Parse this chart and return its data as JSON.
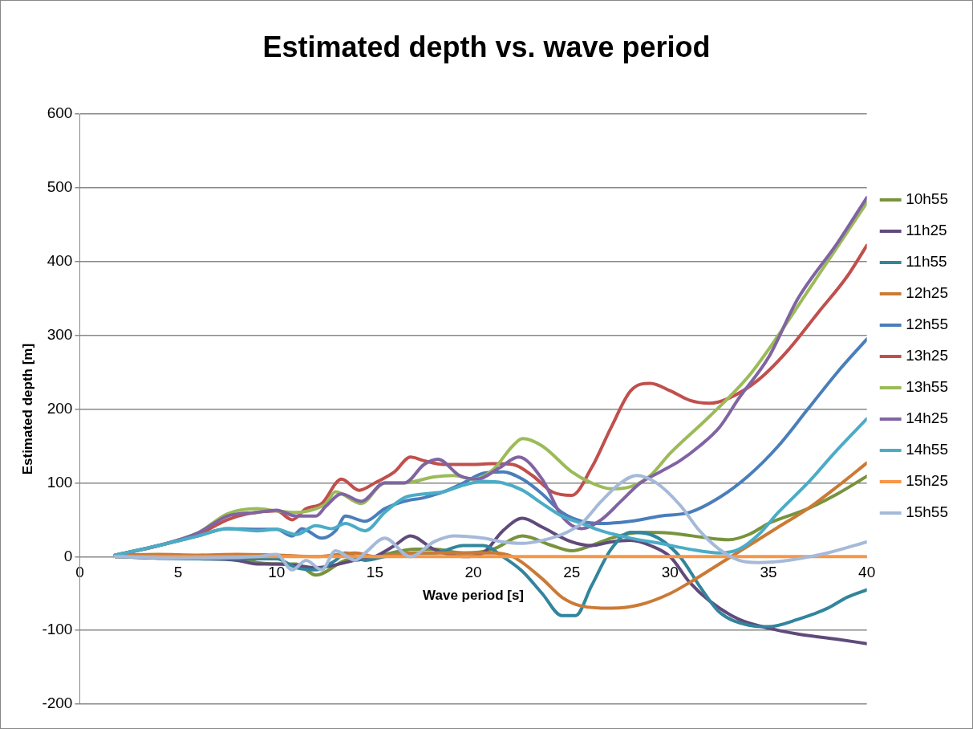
{
  "chart_data": {
    "type": "line",
    "title": "Estimated depth vs. wave period",
    "xlabel": "Wave period [s]",
    "ylabel": "Estimated depth [m]",
    "xlim": [
      0,
      40
    ],
    "xticks": [
      0,
      5,
      10,
      15,
      20,
      25,
      30,
      35,
      40
    ],
    "ylim": [
      -200,
      600
    ],
    "yticks": [
      -200,
      -100,
      0,
      100,
      200,
      300,
      400,
      500,
      600
    ],
    "grid": "y",
    "legend": "right",
    "marker": "none",
    "line_style": "solid",
    "series": [
      {
        "name": "10h55",
        "color": "#77933c",
        "x": [
          1.8,
          4,
          6,
          8,
          9,
          10,
          11,
          12,
          13.5,
          15,
          17,
          18,
          19.5,
          21,
          22.5,
          24,
          25,
          26,
          27,
          28.5,
          30,
          32,
          33,
          34,
          35,
          37,
          38.5,
          40
        ],
        "values": [
          0,
          0,
          -3,
          -3,
          -8,
          -10,
          -10,
          -25,
          -5,
          0,
          10,
          10,
          5,
          10,
          28,
          15,
          8,
          15,
          25,
          33,
          32,
          25,
          23,
          30,
          45,
          65,
          85,
          109
        ]
      },
      {
        "name": "11h25",
        "color": "#604a7b",
        "x": [
          1.8,
          4,
          6,
          8,
          9,
          10,
          11,
          12,
          14,
          15,
          16,
          16.8,
          18,
          19.5,
          20.5,
          21.5,
          22.5,
          23.5,
          25,
          26,
          27,
          28,
          29,
          30,
          31,
          32,
          33.5,
          35,
          36.5,
          38.5,
          40
        ],
        "values": [
          0,
          -2,
          -3,
          -5,
          -10,
          -10,
          -12,
          -15,
          -5,
          0,
          15,
          28,
          10,
          0,
          5,
          35,
          52,
          40,
          20,
          15,
          20,
          22,
          15,
          0,
          -35,
          -60,
          -85,
          -97,
          -105,
          -112,
          -118
        ]
      },
      {
        "name": "11h55",
        "color": "#31859c",
        "x": [
          1.8,
          4,
          6,
          8,
          10,
          11,
          12,
          13,
          13.5,
          14.5,
          15.5,
          17,
          18,
          19.5,
          20.5,
          21.5,
          22.5,
          23.5,
          24.5,
          25.2,
          26,
          27,
          28,
          29,
          30.5,
          31.5,
          32.5,
          34,
          35,
          36.5,
          38,
          39,
          40
        ],
        "values": [
          0,
          -2,
          -3,
          -3,
          -3,
          -15,
          -18,
          -5,
          5,
          -5,
          0,
          5,
          5,
          15,
          15,
          0,
          -20,
          -50,
          -80,
          -80,
          -40,
          10,
          33,
          30,
          0,
          -40,
          -75,
          -93,
          -95,
          -85,
          -70,
          -55,
          -45
        ]
      },
      {
        "name": "12h25",
        "color": "#cb7a35",
        "x": [
          1.8,
          4,
          6,
          8,
          10,
          12,
          14,
          15,
          17,
          20,
          21,
          22,
          23.5,
          24.5,
          25.5,
          27,
          28.5,
          30,
          31,
          32.5,
          34,
          35.5,
          37,
          38.5,
          40
        ],
        "values": [
          2,
          3,
          2,
          3,
          2,
          0,
          5,
          0,
          5,
          5,
          5,
          0,
          -30,
          -55,
          -67,
          -70,
          -65,
          -50,
          -35,
          -10,
          15,
          40,
          65,
          95,
          127
        ]
      },
      {
        "name": "12h55",
        "color": "#4a7ebb",
        "x": [
          1.8,
          4,
          6,
          7.5,
          9,
          10,
          10.8,
          11.3,
          12.3,
          13,
          13.5,
          14.5,
          15.5,
          16.5,
          17.5,
          18.5,
          19.5,
          20.5,
          21.5,
          22.5,
          23.5,
          24.5,
          25.5,
          26.5,
          28,
          29.5,
          31,
          32.5,
          34,
          35.5,
          37,
          38.5,
          40
        ],
        "values": [
          2,
          15,
          28,
          38,
          37,
          37,
          28,
          38,
          25,
          35,
          55,
          48,
          65,
          75,
          80,
          88,
          100,
          113,
          115,
          105,
          85,
          60,
          48,
          45,
          48,
          55,
          60,
          80,
          110,
          150,
          200,
          250,
          295
        ]
      },
      {
        "name": "13h25",
        "color": "#c0504d",
        "x": [
          1.8,
          4,
          6,
          7.5,
          8.5,
          10,
          10.8,
          11.5,
          12.3,
          13.3,
          14.2,
          15,
          16,
          16.8,
          17.5,
          18.5,
          20,
          21,
          22,
          23,
          24,
          25,
          26,
          27,
          28,
          29,
          30,
          31,
          32,
          33,
          34.5,
          36,
          37.5,
          39,
          40
        ],
        "values": [
          2,
          15,
          30,
          50,
          58,
          62,
          50,
          65,
          72,
          105,
          90,
          100,
          115,
          135,
          130,
          125,
          125,
          126,
          125,
          110,
          88,
          83,
          120,
          175,
          225,
          235,
          225,
          212,
          208,
          215,
          240,
          280,
          330,
          380,
          422
        ]
      },
      {
        "name": "13h55",
        "color": "#9bbb59",
        "x": [
          1.8,
          4,
          6,
          7.5,
          9,
          10,
          11,
          12,
          12.5,
          13,
          14.3,
          15.5,
          16.5,
          18,
          19,
          20,
          21,
          22,
          22.5,
          23.5,
          25,
          26,
          27,
          28,
          29,
          30,
          32,
          34,
          35.5,
          37,
          38.5,
          40
        ],
        "values": [
          2,
          15,
          32,
          58,
          65,
          62,
          60,
          65,
          72,
          88,
          72,
          100,
          100,
          108,
          110,
          105,
          118,
          150,
          160,
          150,
          115,
          100,
          92,
          95,
          110,
          140,
          190,
          245,
          300,
          360,
          420,
          480
        ]
      },
      {
        "name": "14h25",
        "color": "#8064a2",
        "x": [
          1.8,
          4,
          6,
          7.5,
          9,
          10,
          11,
          12,
          12.5,
          13.3,
          14.3,
          15.5,
          16.5,
          17.5,
          18.2,
          19.3,
          20.2,
          21.3,
          22.3,
          23.5,
          24.5,
          25.5,
          26.5,
          27.5,
          28.5,
          29.5,
          30.5,
          31.5,
          32.5,
          33.5,
          35,
          36.5,
          38.5,
          40
        ],
        "values": [
          2,
          15,
          32,
          55,
          60,
          63,
          55,
          55,
          68,
          85,
          75,
          100,
          100,
          125,
          132,
          110,
          105,
          120,
          135,
          105,
          55,
          38,
          50,
          75,
          100,
          115,
          130,
          150,
          175,
          215,
          270,
          350,
          425,
          487
        ]
      },
      {
        "name": "14h55",
        "color": "#4bacc6",
        "x": [
          1.8,
          4,
          6,
          7.5,
          9,
          10,
          11,
          12,
          12.8,
          13.5,
          14.5,
          15.5,
          16.5,
          17.5,
          18.5,
          19.5,
          20.5,
          21.5,
          22.5,
          23.5,
          24.5,
          25.5,
          26.5,
          28,
          29.5,
          31,
          32.5,
          33.5,
          34.5,
          35.5,
          37,
          38.5,
          40
        ],
        "values": [
          2,
          15,
          28,
          38,
          35,
          37,
          30,
          42,
          38,
          45,
          35,
          60,
          80,
          85,
          88,
          97,
          102,
          100,
          90,
          72,
          55,
          45,
          35,
          25,
          18,
          10,
          5,
          10,
          30,
          60,
          100,
          145,
          187
        ]
      },
      {
        "name": "15h25",
        "color": "#f79646",
        "x": [
          1.8,
          10,
          20,
          30,
          40
        ],
        "values": [
          0,
          0,
          0,
          0,
          0
        ]
      },
      {
        "name": "15h55",
        "color": "#a5b9d9",
        "x": [
          1.8,
          5,
          9,
          10,
          10.8,
          11.5,
          12.3,
          13,
          14,
          14.5,
          15.5,
          16.8,
          18,
          19,
          20.5,
          21.5,
          22.5,
          23.5,
          24.5,
          25.5,
          26.5,
          27.5,
          28.3,
          29.3,
          30.5,
          31.5,
          32.5,
          33.5,
          34.5,
          36,
          38,
          40
        ],
        "values": [
          0,
          -2,
          0,
          3,
          -18,
          -5,
          -18,
          8,
          -5,
          5,
          25,
          0,
          20,
          28,
          25,
          20,
          18,
          22,
          30,
          45,
          75,
          100,
          110,
          100,
          70,
          35,
          10,
          -5,
          -8,
          -5,
          5,
          20
        ]
      }
    ]
  }
}
